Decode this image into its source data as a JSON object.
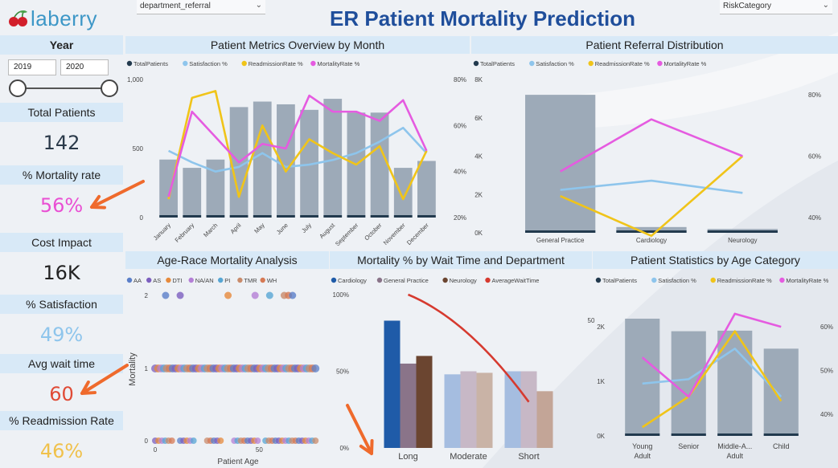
{
  "header": {
    "logo_text": "laberry",
    "title": "ER Patient Mortality Prediction",
    "slicer_department": "department_referral",
    "slicer_risk": "RiskCategory"
  },
  "filters": {
    "year_label": "Year",
    "year_from": "2019",
    "year_to": "2020"
  },
  "kpis": [
    {
      "label": "Total Patients",
      "value": "142",
      "color": "#2b3a4a"
    },
    {
      "label": "% Mortality rate",
      "value": "56%",
      "color": "#e94fd3"
    },
    {
      "label": "Cost Impact",
      "value": "16K",
      "color": "#222222"
    },
    {
      "label": "% Satisfaction",
      "value": "49%",
      "color": "#8ec5ec"
    },
    {
      "label": "Avg wait time",
      "value": "60",
      "color": "#e04a35"
    },
    {
      "label": "% Readmission Rate",
      "value": "46%",
      "color": "#f0c14b"
    }
  ],
  "colors": {
    "total": "#223a4e",
    "satisfaction": "#8ec5ec",
    "readmission": "#f0c419",
    "mortality": "#e55be0",
    "bar": "#9daab8",
    "cardiology": "#1f5ba8",
    "general": "#8a7489",
    "neurology": "#6b4530",
    "wait": "#d63a2f",
    "arrow": "#ef6a2c"
  },
  "legend_main": [
    "TotalPatients",
    "Satisfaction %",
    "ReadmissionRate %",
    "MortalityRate %"
  ],
  "chart_data": [
    {
      "type": "bar",
      "title": "Patient Metrics Overview by Month",
      "categories": [
        "January",
        "February",
        "March",
        "April",
        "May",
        "June",
        "July",
        "August",
        "September",
        "October",
        "November",
        "December"
      ],
      "series": [
        {
          "name": "TotalPatients",
          "values": [
            420,
            360,
            420,
            800,
            840,
            820,
            780,
            860,
            760,
            760,
            360,
            410
          ]
        },
        {
          "name": "Satisfaction %",
          "values": [
            49,
            44,
            40,
            42,
            48,
            42,
            43,
            45,
            48,
            53,
            59,
            48
          ]
        },
        {
          "name": "ReadmissionRate %",
          "values": [
            28,
            72,
            75,
            29,
            60,
            40,
            54,
            48,
            43,
            51,
            28,
            49
          ]
        },
        {
          "name": "MortalityRate %",
          "values": [
            29,
            66,
            55,
            44,
            52,
            50,
            73,
            66,
            66,
            62,
            71,
            49
          ]
        }
      ],
      "y_ticks": [
        "0",
        "500",
        "1,000"
      ],
      "y2_ticks": [
        "20%",
        "40%",
        "60%",
        "80%"
      ],
      "ylim": [
        0,
        1000
      ],
      "y2lim": [
        20,
        80
      ]
    },
    {
      "type": "bar",
      "title": "Patient Referral Distribution",
      "categories": [
        "General Practice",
        "Cardiology",
        "Neurology"
      ],
      "series": [
        {
          "name": "TotalPatients",
          "values": [
            7200,
            300,
            200
          ]
        },
        {
          "name": "Satisfaction %",
          "values": [
            49,
            52,
            48
          ]
        },
        {
          "name": "ReadmissionRate %",
          "values": [
            47,
            34,
            60
          ]
        },
        {
          "name": "MortalityRate %",
          "values": [
            55,
            72,
            60
          ]
        }
      ],
      "y_ticks": [
        "0K",
        "2K",
        "4K",
        "6K",
        "8K"
      ],
      "y2_ticks": [
        "40%",
        "60%",
        "80%"
      ],
      "ylim": [
        0,
        8000
      ],
      "y2lim": [
        35,
        85
      ]
    },
    {
      "type": "scatter",
      "title": "Age-Race Mortality Analysis",
      "legend": [
        "AA",
        "AS",
        "DTI",
        "NA/AN",
        "PI",
        "TMR",
        "WH"
      ],
      "legend_colors": [
        "#5b7fc9",
        "#7c5fbf",
        "#e68a3c",
        "#b47fd6",
        "#57a6d4",
        "#c98b6b",
        "#d67a55"
      ],
      "xlabel": "Patient Age",
      "ylabel": "Mortality",
      "x_ticks": [
        "0",
        "50"
      ],
      "y_ticks": [
        "0",
        "1",
        "2"
      ],
      "rows": [
        {
          "y": 2,
          "x": [
            5,
            12,
            35,
            48,
            55,
            62,
            64,
            66
          ]
        },
        {
          "y": 1,
          "x_range": [
            0,
            78
          ]
        },
        {
          "y": 0,
          "x_ranges": [
            [
              0,
              8
            ],
            [
              12,
              20
            ],
            [
              25,
              32
            ],
            [
              38,
              50
            ],
            [
              53,
              78
            ]
          ]
        }
      ]
    },
    {
      "type": "bar",
      "title": "Mortality % by Wait Time and Department",
      "legend": [
        "Cardiology",
        "General Practice",
        "Neurology",
        "AverageWaitTime"
      ],
      "categories": [
        "Long",
        "Moderate",
        "Short"
      ],
      "series": [
        {
          "name": "Cardiology",
          "values": [
            83,
            48,
            50
          ]
        },
        {
          "name": "General Practice",
          "values": [
            55,
            50,
            50
          ]
        },
        {
          "name": "Neurology",
          "values": [
            60,
            49,
            37
          ]
        },
        {
          "name": "AverageWaitTime",
          "values": [
            100,
            68,
            30
          ]
        }
      ],
      "y_ticks": [
        "0%",
        "50%",
        "100%"
      ],
      "ylim": [
        0,
        100
      ]
    },
    {
      "type": "bar",
      "title": "Patient Statistics by Age Category",
      "categories": [
        "Young Adult",
        "Senior",
        "Middle-A... Adult",
        "Child"
      ],
      "series": [
        {
          "name": "TotalPatients",
          "values": [
            2150,
            1920,
            1930,
            1600
          ]
        },
        {
          "name": "Satisfaction %",
          "values": [
            47,
            48,
            55,
            44
          ]
        },
        {
          "name": "ReadmissionRate %",
          "values": [
            37,
            44,
            59,
            43
          ]
        },
        {
          "name": "MortalityRate %",
          "values": [
            53,
            44,
            63,
            60
          ]
        }
      ],
      "y_ticks": [
        "0K",
        "1K",
        "2K"
      ],
      "y2_ticks": [
        "40%",
        "50%",
        "60%"
      ],
      "extra_tick": "50",
      "ylim": [
        0,
        2400
      ],
      "y2lim": [
        35,
        65
      ]
    }
  ]
}
